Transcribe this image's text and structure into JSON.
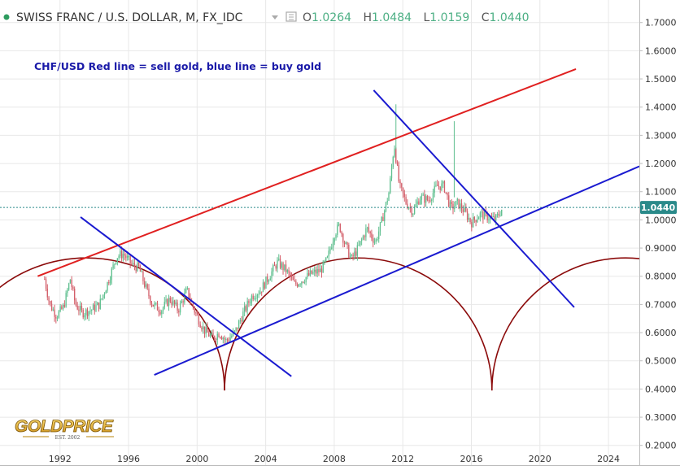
{
  "header": {
    "symbol_title": "SWISS FRANC / U.S. DOLLAR, M, FX_IDC",
    "o_label": "O",
    "o_value": "1.0264",
    "h_label": "H",
    "h_value": "1.0484",
    "l_label": "L",
    "l_value": "1.0159",
    "c_label": "C",
    "c_value": "1.0440"
  },
  "annotation": "CHF/USD Red line = sell gold, blue line = buy gold",
  "logo": {
    "text": "GOLDPRICE",
    "sub": "EST. 2002"
  },
  "price_tag": "1.0440",
  "colors": {
    "up": "#5fbf8f",
    "down": "#d35f6a",
    "sell_line": "#e02020",
    "buy_line": "#1a1ad0",
    "cycle": "#8b0a0a",
    "grid": "#e8e8e8",
    "last_price": "#2a8a8a"
  },
  "chart_data": {
    "type": "candlestick",
    "x_range": [
      1988.5,
      2025.8
    ],
    "y_range": [
      0.13,
      1.78
    ],
    "x_ticks": [
      "1992",
      "1996",
      "2000",
      "2004",
      "2008",
      "2012",
      "2016",
      "2020",
      "2024"
    ],
    "y_ticks": [
      "0.2000",
      "0.3000",
      "0.4000",
      "0.5000",
      "0.6000",
      "0.7000",
      "0.8000",
      "0.9000",
      "1.0000",
      "1.1000",
      "1.2000",
      "1.3000",
      "1.4000",
      "1.5000",
      "1.6000",
      "1.7000"
    ],
    "last_price": 1.044,
    "price_path": [
      [
        1991.1,
        0.79
      ],
      [
        1991.4,
        0.7
      ],
      [
        1991.8,
        0.66
      ],
      [
        1992.2,
        0.69
      ],
      [
        1992.6,
        0.79
      ],
      [
        1992.9,
        0.7
      ],
      [
        1993.3,
        0.67
      ],
      [
        1993.8,
        0.68
      ],
      [
        1994.3,
        0.7
      ],
      [
        1994.8,
        0.78
      ],
      [
        1995.3,
        0.87
      ],
      [
        1995.7,
        0.88
      ],
      [
        1996.2,
        0.84
      ],
      [
        1996.6,
        0.83
      ],
      [
        1997.0,
        0.76
      ],
      [
        1997.4,
        0.7
      ],
      [
        1997.9,
        0.68
      ],
      [
        1998.4,
        0.72
      ],
      [
        1998.9,
        0.68
      ],
      [
        1999.4,
        0.75
      ],
      [
        1999.9,
        0.67
      ],
      [
        2000.4,
        0.61
      ],
      [
        2000.9,
        0.58
      ],
      [
        2001.3,
        0.6
      ],
      [
        2001.7,
        0.57
      ],
      [
        2002.2,
        0.6
      ],
      [
        2002.7,
        0.67
      ],
      [
        2003.2,
        0.73
      ],
      [
        2003.7,
        0.75
      ],
      [
        2004.2,
        0.8
      ],
      [
        2004.7,
        0.85
      ],
      [
        2005.2,
        0.82
      ],
      [
        2005.7,
        0.77
      ],
      [
        2006.2,
        0.79
      ],
      [
        2006.7,
        0.81
      ],
      [
        2007.2,
        0.82
      ],
      [
        2007.6,
        0.86
      ],
      [
        2008.0,
        0.95
      ],
      [
        2008.3,
        0.98
      ],
      [
        2008.6,
        0.92
      ],
      [
        2009.0,
        0.86
      ],
      [
        2009.4,
        0.9
      ],
      [
        2009.9,
        0.97
      ],
      [
        2010.4,
        0.92
      ],
      [
        2010.8,
        1.0
      ],
      [
        2011.2,
        1.1
      ],
      [
        2011.5,
        1.27
      ],
      [
        2011.8,
        1.12
      ],
      [
        2012.2,
        1.06
      ],
      [
        2012.6,
        1.03
      ],
      [
        2013.0,
        1.08
      ],
      [
        2013.5,
        1.07
      ],
      [
        2014.0,
        1.12
      ],
      [
        2014.4,
        1.12
      ],
      [
        2014.8,
        1.04
      ],
      [
        2015.2,
        1.06
      ],
      [
        2015.6,
        1.03
      ],
      [
        2016.0,
        0.99
      ],
      [
        2016.5,
        1.02
      ],
      [
        2017.0,
        1.01
      ],
      [
        2017.4,
        1.0
      ],
      [
        2017.8,
        1.04
      ]
    ],
    "spikes": [
      {
        "x": 2011.6,
        "low": 1.25,
        "high": 1.41
      },
      {
        "x": 2015.0,
        "low": 1.08,
        "high": 1.35
      }
    ],
    "trendlines": [
      {
        "name": "sell-line",
        "color": "#e02020",
        "from": [
          1990.7,
          0.8
        ],
        "to": [
          2022.1,
          1.535
        ]
      },
      {
        "name": "buy-line",
        "color": "#1a1ad0",
        "from": [
          1997.5,
          0.45
        ],
        "to": [
          2025.8,
          1.19
        ]
      },
      {
        "name": "downtrend-1990s",
        "color": "#1a1ad0",
        "from": [
          1993.2,
          1.01
        ],
        "to": [
          2005.5,
          0.445
        ]
      },
      {
        "name": "downtrend-2011",
        "color": "#1a1ad0",
        "from": [
          2010.3,
          1.46
        ],
        "to": [
          2022.0,
          0.69
        ]
      }
    ],
    "cycle_arcs": [
      {
        "name": "cycle-1",
        "x_start": 1985.5,
        "x_end": 2001.6,
        "low": 0.395,
        "peak": 0.865
      },
      {
        "name": "cycle-2",
        "x_start": 2001.6,
        "x_end": 2017.2,
        "low": 0.395,
        "peak": 0.865
      },
      {
        "name": "cycle-3",
        "x_start": 2017.2,
        "x_end": 2032.8,
        "low": 0.395,
        "peak": 0.865
      }
    ]
  }
}
